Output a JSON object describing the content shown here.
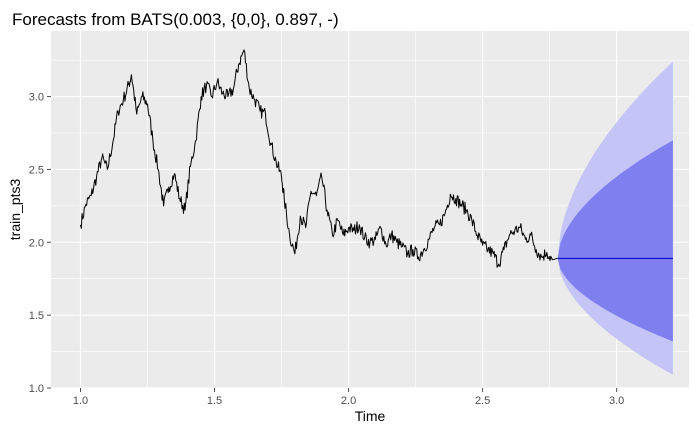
{
  "chart_data": {
    "type": "line",
    "title": "Forecasts from BATS(0.003, {0,0}, 0.897, -)",
    "xlabel": "Time",
    "ylabel": "train_pts3",
    "xlim": [
      0.89,
      3.27
    ],
    "ylim": [
      1.0,
      3.45
    ],
    "x_ticks": [
      1.0,
      1.5,
      2.0,
      2.5,
      3.0
    ],
    "x_tick_labels": [
      "1.0",
      "1.5",
      "2.0",
      "2.5",
      "3.0"
    ],
    "y_ticks": [
      1.0,
      1.5,
      2.0,
      2.5,
      3.0
    ],
    "y_tick_labels": [
      "1.0",
      "1.5",
      "2.0",
      "2.5",
      "3.0"
    ],
    "grid": true,
    "legend": "none",
    "colors": {
      "panel": "#ebebeb",
      "grid": "#ffffff",
      "series": "#000000",
      "forecast": "#0000cc",
      "band80": "#7f7ff0",
      "band95": "#c4c4f6",
      "ticks": "#4d4d4d"
    },
    "series": [
      {
        "values": [
          [
            1.0,
            2.12
          ],
          [
            1.02,
            2.26
          ],
          [
            1.04,
            2.32
          ],
          [
            1.06,
            2.45
          ],
          [
            1.08,
            2.58
          ],
          [
            1.1,
            2.5
          ],
          [
            1.12,
            2.68
          ],
          [
            1.14,
            2.9
          ],
          [
            1.16,
            2.98
          ],
          [
            1.18,
            3.08
          ],
          [
            1.19,
            3.15
          ],
          [
            1.21,
            2.88
          ],
          [
            1.23,
            3.0
          ],
          [
            1.25,
            2.95
          ],
          [
            1.27,
            2.7
          ],
          [
            1.29,
            2.5
          ],
          [
            1.31,
            2.25
          ],
          [
            1.33,
            2.38
          ],
          [
            1.35,
            2.47
          ],
          [
            1.37,
            2.3
          ],
          [
            1.39,
            2.22
          ],
          [
            1.41,
            2.52
          ],
          [
            1.43,
            2.7
          ],
          [
            1.45,
            3.0
          ],
          [
            1.47,
            3.08
          ],
          [
            1.49,
            3.0
          ],
          [
            1.51,
            3.1
          ],
          [
            1.53,
            3.02
          ],
          [
            1.55,
            3.0
          ],
          [
            1.57,
            3.05
          ],
          [
            1.59,
            3.22
          ],
          [
            1.61,
            3.32
          ],
          [
            1.63,
            3.05
          ],
          [
            1.65,
            2.98
          ],
          [
            1.67,
            2.9
          ],
          [
            1.69,
            2.88
          ],
          [
            1.71,
            2.68
          ],
          [
            1.73,
            2.55
          ],
          [
            1.75,
            2.45
          ],
          [
            1.76,
            2.3
          ],
          [
            1.78,
            2.05
          ],
          [
            1.8,
            1.92
          ],
          [
            1.82,
            2.18
          ],
          [
            1.84,
            2.1
          ],
          [
            1.86,
            2.35
          ],
          [
            1.88,
            2.32
          ],
          [
            1.9,
            2.45
          ],
          [
            1.92,
            2.22
          ],
          [
            1.94,
            2.05
          ],
          [
            1.96,
            2.15
          ],
          [
            1.98,
            2.05
          ],
          [
            2.0,
            2.1
          ],
          [
            2.02,
            2.08
          ],
          [
            2.04,
            2.12
          ],
          [
            2.06,
            2.03
          ],
          [
            2.08,
            2.0
          ],
          [
            2.1,
            2.02
          ],
          [
            2.12,
            2.1
          ],
          [
            2.14,
            1.98
          ],
          [
            2.16,
            2.05
          ],
          [
            2.18,
            2.0
          ],
          [
            2.2,
            1.97
          ],
          [
            2.22,
            1.92
          ],
          [
            2.24,
            1.95
          ],
          [
            2.26,
            1.9
          ],
          [
            2.28,
            1.95
          ],
          [
            2.3,
            2.02
          ],
          [
            2.32,
            2.1
          ],
          [
            2.34,
            2.12
          ],
          [
            2.36,
            2.2
          ],
          [
            2.38,
            2.33
          ],
          [
            2.4,
            2.3
          ],
          [
            2.42,
            2.26
          ],
          [
            2.44,
            2.22
          ],
          [
            2.46,
            2.15
          ],
          [
            2.48,
            2.05
          ],
          [
            2.5,
            1.98
          ],
          [
            2.52,
            1.95
          ],
          [
            2.54,
            1.92
          ],
          [
            2.56,
            1.85
          ],
          [
            2.58,
            1.95
          ],
          [
            2.6,
            2.05
          ],
          [
            2.62,
            2.08
          ],
          [
            2.64,
            2.1
          ],
          [
            2.66,
            2.02
          ],
          [
            2.68,
            2.05
          ],
          [
            2.7,
            1.95
          ],
          [
            2.72,
            1.9
          ],
          [
            2.74,
            1.93
          ],
          [
            2.76,
            1.88
          ]
        ]
      },
      {
        "type": "forecast",
        "start": 2.78,
        "end": 3.21,
        "value": 1.89,
        "band80": {
          "upper_end": 2.7,
          "lower_end": 1.32
        },
        "band95": {
          "upper_end": 3.24,
          "lower_end": 1.09
        }
      }
    ]
  }
}
